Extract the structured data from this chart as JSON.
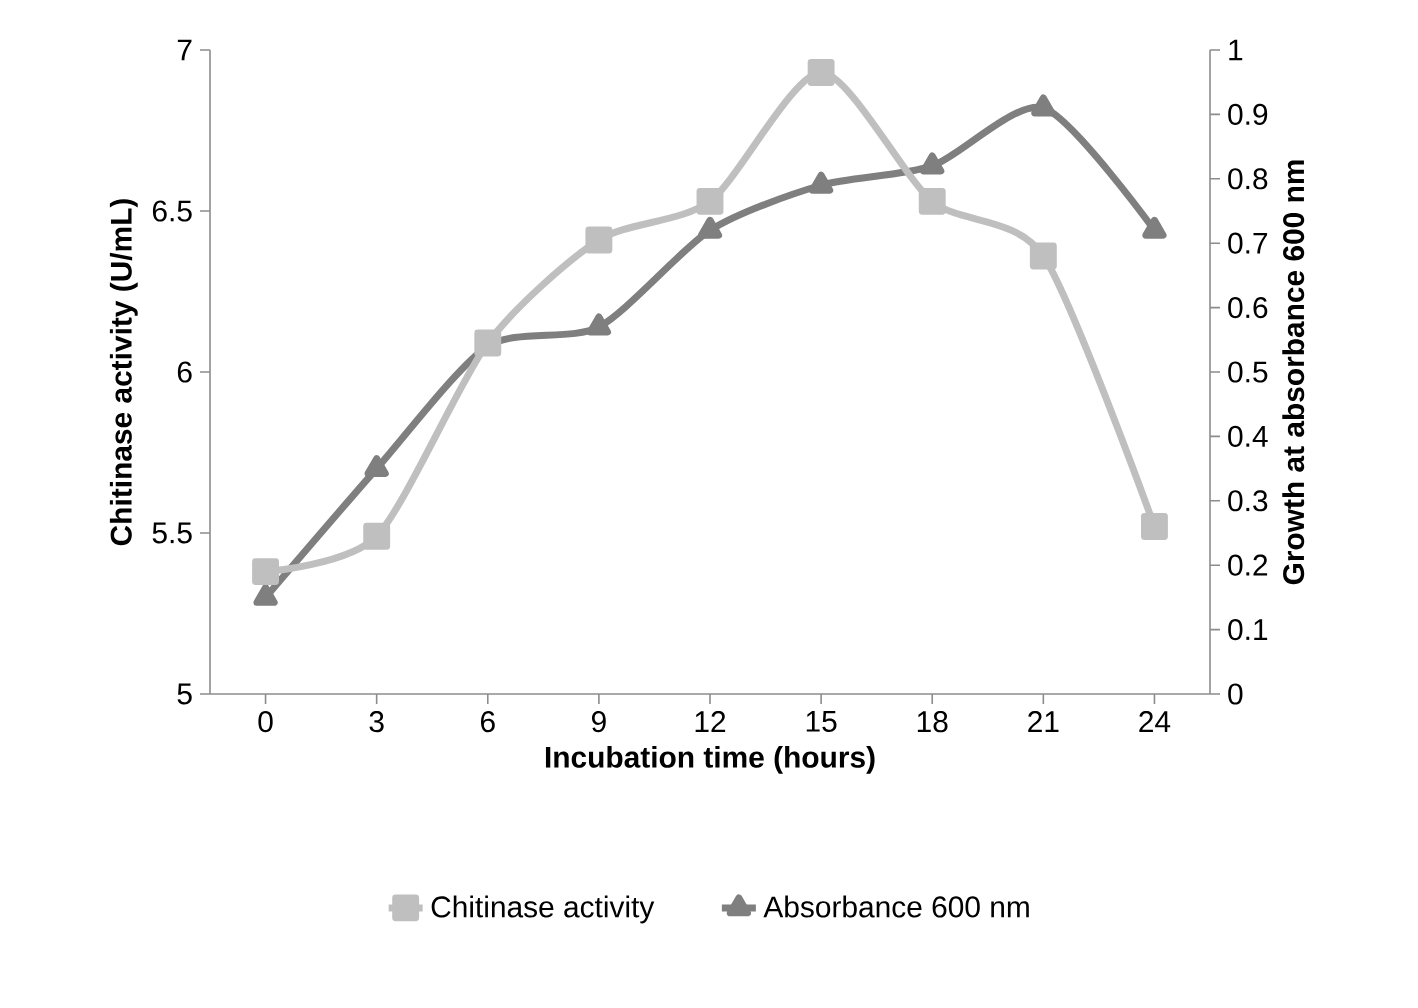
{
  "chart_data": {
    "type": "line",
    "xlabel": "Incubation time (hours)",
    "ylabel": "Chitinase activity (U/mL)",
    "y2label": "Growth at absorbance 600 nm",
    "categories": [
      "0",
      "3",
      "6",
      "9",
      "12",
      "15",
      "18",
      "21",
      "24"
    ],
    "series": [
      {
        "name": "Chitinase activity",
        "color": "#bfbfbf",
        "marker": "square",
        "values": [
          5.38,
          5.49,
          6.09,
          6.41,
          6.53,
          6.93,
          6.53,
          6.36,
          5.52
        ]
      },
      {
        "name": "Absorbance 600 nm",
        "color": "#7f7f7f",
        "marker": "triangle",
        "axis": "y2",
        "values": [
          0.15,
          0.35,
          0.54,
          0.57,
          0.72,
          0.79,
          0.82,
          0.91,
          0.72
        ]
      }
    ],
    "ylim": [
      5,
      7
    ],
    "yticks": [
      5,
      5.5,
      6,
      6.5,
      7
    ],
    "y2lim": [
      0,
      1
    ],
    "y2ticks": [
      0,
      0.1,
      0.2,
      0.3,
      0.4,
      0.5,
      0.6,
      0.7,
      0.8,
      0.9,
      1
    ],
    "grid": false,
    "legend": "bottom"
  }
}
